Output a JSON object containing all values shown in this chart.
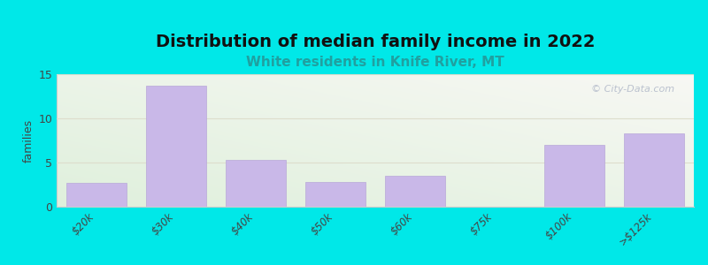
{
  "title": "Distribution of median family income in 2022",
  "subtitle": "White residents in Knife River, MT",
  "categories": [
    "$20k",
    "$30k",
    "$40k",
    "$50k",
    "$60k",
    "$75k",
    "$100k",
    ">$125k"
  ],
  "values": [
    2.7,
    13.7,
    5.3,
    2.8,
    3.5,
    0,
    7.0,
    8.3
  ],
  "bar_color": "#c9b8e8",
  "bar_edge_color": "#b8a8d8",
  "background_color": "#00e8e8",
  "title_fontsize": 14,
  "subtitle_fontsize": 11,
  "subtitle_color": "#20a0a0",
  "ylabel": "families",
  "ylim": [
    0,
    15
  ],
  "yticks": [
    0,
    5,
    10,
    15
  ],
  "watermark": "© City-Data.com",
  "grid_color": "#ddddcc",
  "plot_bg_colors": [
    "#e8f5e0",
    "#f5f5ee",
    "#f8f8f0",
    "#ffffff"
  ]
}
